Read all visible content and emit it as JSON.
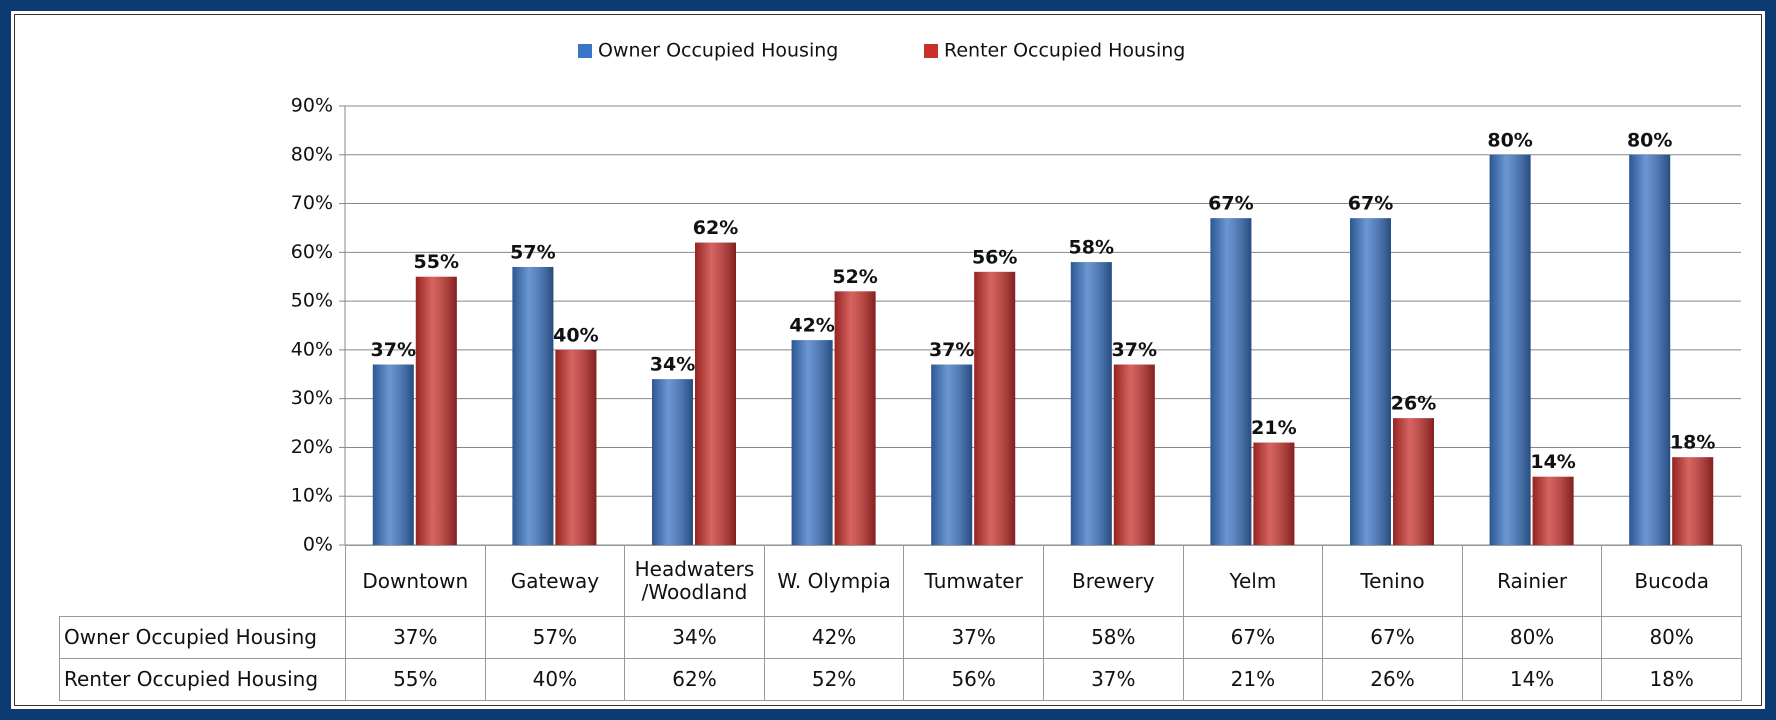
{
  "chart_data": {
    "type": "bar",
    "categories": [
      "Downtown",
      "Gateway",
      "Headwaters\n/Woodland",
      "W. Olympia",
      "Tumwater",
      "Brewery",
      "Yelm",
      "Tenino",
      "Rainier",
      "Bucoda"
    ],
    "series": [
      {
        "name": "Owner Occupied Housing",
        "color": "#3a74c4",
        "values": [
          37,
          57,
          34,
          42,
          37,
          58,
          67,
          67,
          80,
          80
        ],
        "value_labels": [
          "37%",
          "57%",
          "34%",
          "42%",
          "37%",
          "58%",
          "67%",
          "67%",
          "80%",
          "80%"
        ]
      },
      {
        "name": "Renter Occupied Housing",
        "color": "#c8302c",
        "values": [
          55,
          40,
          62,
          52,
          56,
          37,
          21,
          26,
          14,
          18
        ],
        "value_labels": [
          "55%",
          "40%",
          "62%",
          "52%",
          "56%",
          "37%",
          "21%",
          "26%",
          "14%",
          "18%"
        ]
      }
    ],
    "ylim": [
      0,
      90
    ],
    "yticks": [
      {
        "value": 0,
        "label": "0%"
      },
      {
        "value": 10,
        "label": "10%"
      },
      {
        "value": 20,
        "label": "20%"
      },
      {
        "value": 30,
        "label": "30%"
      },
      {
        "value": 40,
        "label": "40%"
      },
      {
        "value": 50,
        "label": "50%"
      },
      {
        "value": 60,
        "label": "60%"
      },
      {
        "value": 70,
        "label": "70%"
      },
      {
        "value": 80,
        "label": "80%"
      },
      {
        "value": 90,
        "label": "90%"
      }
    ],
    "grid": true,
    "legend": "top"
  }
}
